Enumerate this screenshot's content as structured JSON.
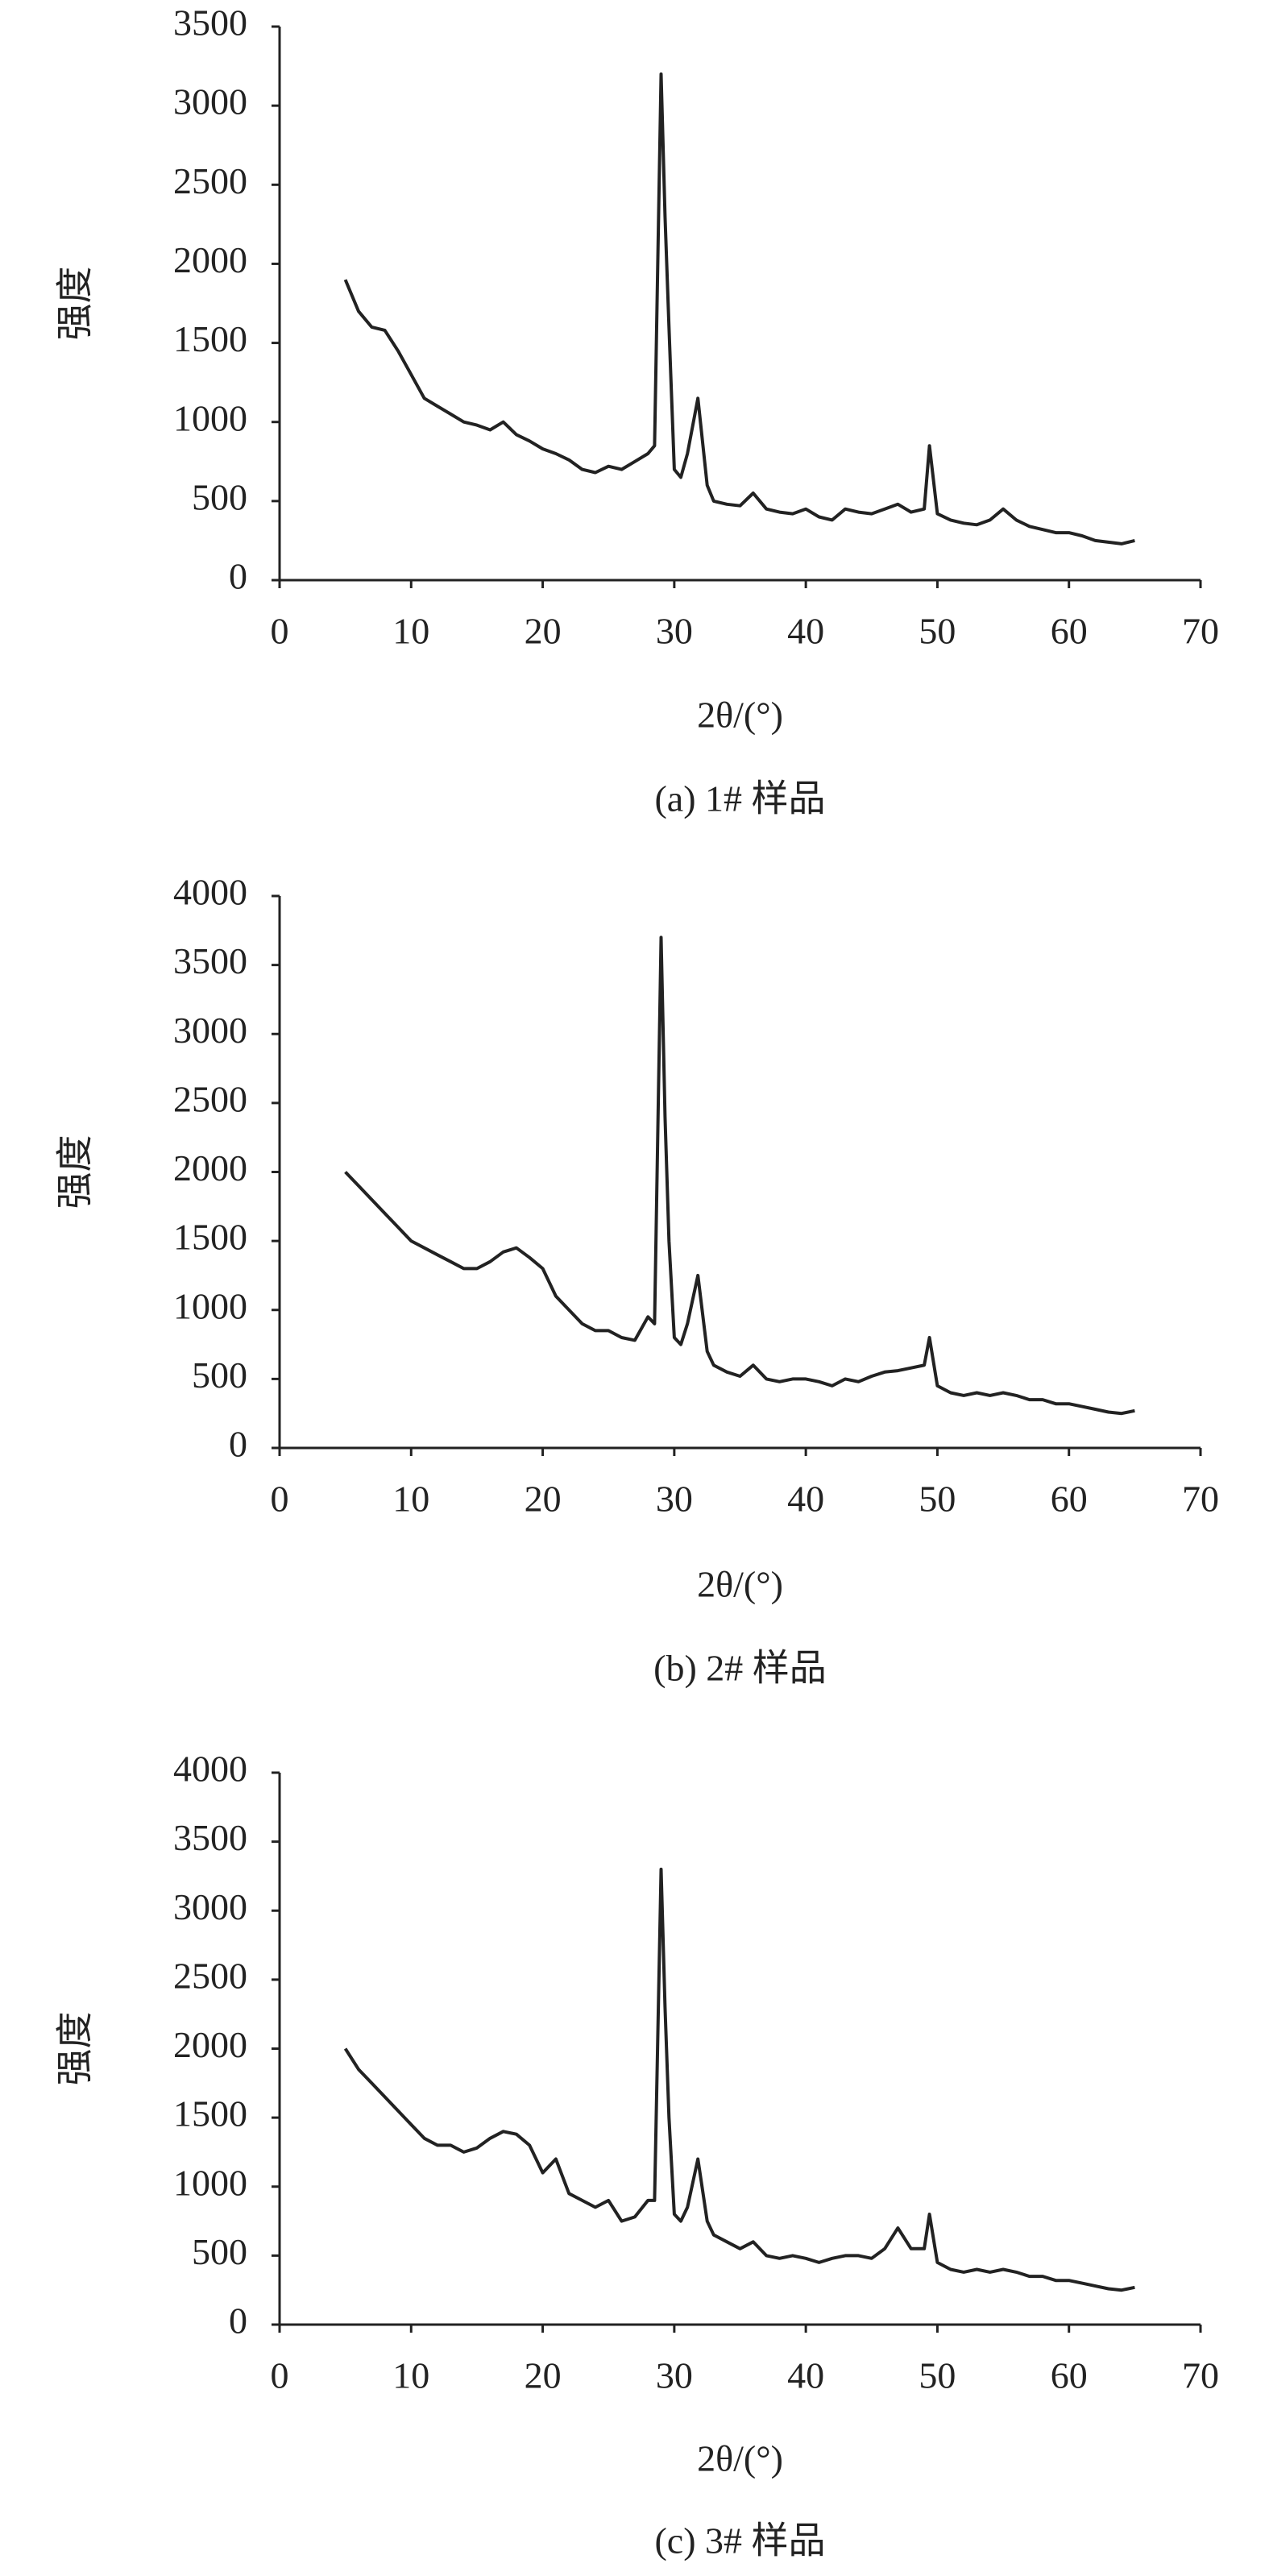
{
  "chart_data": [
    {
      "type": "line",
      "ylabel": "强度",
      "xlabel": "2θ/(°)",
      "caption": "(a) 1# 样品",
      "x": [
        5,
        6,
        7,
        8,
        9,
        10,
        11,
        12,
        13,
        14,
        15,
        16,
        17,
        18,
        19,
        20,
        21,
        22,
        23,
        24,
        25,
        26,
        27,
        28,
        28.5,
        29,
        29.3,
        29.6,
        30,
        30.5,
        31,
        31.8,
        32.5,
        33,
        34,
        35,
        36,
        37,
        38,
        39,
        40,
        41,
        42,
        43,
        44,
        45,
        46,
        47,
        48,
        49,
        49.4,
        50,
        51,
        52,
        53,
        54,
        55,
        56,
        57,
        58,
        59,
        60,
        61,
        62,
        63,
        64,
        65
      ],
      "series": [
        {
          "color": "#222222",
          "values": [
            1900,
            1700,
            1600,
            1580,
            1450,
            1300,
            1150,
            1100,
            1050,
            1000,
            980,
            950,
            1000,
            920,
            880,
            830,
            800,
            760,
            700,
            680,
            720,
            700,
            750,
            800,
            850,
            3200,
            2300,
            1600,
            700,
            650,
            800,
            1150,
            600,
            500,
            480,
            470,
            550,
            450,
            430,
            420,
            450,
            400,
            380,
            450,
            430,
            420,
            450,
            480,
            430,
            450,
            850,
            420,
            380,
            360,
            350,
            380,
            450,
            380,
            340,
            320,
            300,
            300,
            280,
            250,
            240,
            230,
            250
          ]
        }
      ],
      "xlim": [
        0,
        70
      ],
      "xticks": [
        0,
        10,
        20,
        30,
        40,
        50,
        60,
        70
      ],
      "ylim": [
        0,
        3500
      ],
      "yticks": [
        0,
        500,
        1000,
        1500,
        2000,
        2500,
        3000,
        3500
      ]
    },
    {
      "type": "line",
      "ylabel": "强度",
      "xlabel": "2θ/(°)",
      "caption": "(b) 2# 样品",
      "x": [
        5,
        6,
        7,
        8,
        9,
        10,
        11,
        12,
        13,
        14,
        15,
        16,
        17,
        18,
        19,
        20,
        21,
        22,
        23,
        24,
        25,
        26,
        27,
        28,
        28.5,
        29,
        29.3,
        29.6,
        30,
        30.5,
        31,
        31.8,
        32.5,
        33,
        34,
        35,
        36,
        37,
        38,
        39,
        40,
        41,
        42,
        43,
        44,
        45,
        46,
        47,
        48,
        49,
        49.4,
        50,
        51,
        52,
        53,
        54,
        55,
        56,
        57,
        58,
        59,
        60,
        61,
        62,
        63,
        64,
        65
      ],
      "series": [
        {
          "color": "#222222",
          "values": [
            2000,
            1900,
            1800,
            1700,
            1600,
            1500,
            1450,
            1400,
            1350,
            1300,
            1300,
            1350,
            1420,
            1450,
            1380,
            1300,
            1100,
            1000,
            900,
            850,
            850,
            800,
            780,
            950,
            900,
            3700,
            2400,
            1500,
            800,
            750,
            900,
            1250,
            700,
            600,
            550,
            520,
            600,
            500,
            480,
            500,
            500,
            480,
            450,
            500,
            480,
            520,
            550,
            560,
            580,
            600,
            800,
            450,
            400,
            380,
            400,
            380,
            400,
            380,
            350,
            350,
            320,
            320,
            300,
            280,
            260,
            250,
            270
          ]
        }
      ],
      "xlim": [
        0,
        70
      ],
      "xticks": [
        0,
        10,
        20,
        30,
        40,
        50,
        60,
        70
      ],
      "ylim": [
        0,
        4000
      ],
      "yticks": [
        0,
        500,
        1000,
        1500,
        2000,
        2500,
        3000,
        3500,
        4000
      ]
    },
    {
      "type": "line",
      "ylabel": "强度",
      "xlabel": "2θ/(°)",
      "caption": "(c) 3# 样品",
      "x": [
        5,
        6,
        7,
        8,
        9,
        10,
        11,
        12,
        13,
        14,
        15,
        16,
        17,
        18,
        19,
        20,
        21,
        22,
        23,
        24,
        25,
        26,
        27,
        28,
        28.5,
        29,
        29.3,
        29.6,
        30,
        30.5,
        31,
        31.8,
        32.5,
        33,
        34,
        35,
        36,
        37,
        38,
        39,
        40,
        41,
        42,
        43,
        44,
        45,
        46,
        47,
        48,
        49,
        49.4,
        50,
        51,
        52,
        53,
        54,
        55,
        56,
        57,
        58,
        59,
        60,
        61,
        62,
        63,
        64,
        65
      ],
      "series": [
        {
          "color": "#222222",
          "values": [
            2000,
            1850,
            1750,
            1650,
            1550,
            1450,
            1350,
            1300,
            1300,
            1250,
            1280,
            1350,
            1400,
            1380,
            1300,
            1100,
            1200,
            950,
            900,
            850,
            900,
            750,
            780,
            900,
            900,
            3300,
            2300,
            1500,
            800,
            750,
            850,
            1200,
            750,
            650,
            600,
            550,
            600,
            500,
            480,
            500,
            480,
            450,
            480,
            500,
            500,
            480,
            550,
            700,
            550,
            550,
            800,
            450,
            400,
            380,
            400,
            380,
            400,
            380,
            350,
            350,
            320,
            320,
            300,
            280,
            260,
            250,
            270
          ]
        }
      ],
      "xlim": [
        0,
        70
      ],
      "xticks": [
        0,
        10,
        20,
        30,
        40,
        50,
        60,
        70
      ],
      "ylim": [
        0,
        4000
      ],
      "yticks": [
        0,
        500,
        1000,
        1500,
        2000,
        2500,
        3000,
        3500,
        4000
      ]
    }
  ]
}
